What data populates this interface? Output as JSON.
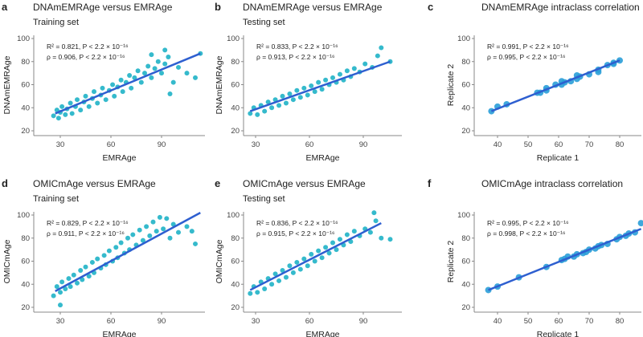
{
  "colors": {
    "points": "#1fb2c6",
    "points_icc": "#2a9ed8",
    "line": "#2e5fd0",
    "axis": "#888888"
  },
  "chart_data": [
    {
      "letter": "a",
      "type": "scatter",
      "title": "DNAmEMRAge versus EMRAge",
      "subtitle": "Training set",
      "xlabel": "EMRAge",
      "ylabel": "DNAmEMRAge",
      "xticks": [
        30,
        60,
        90
      ],
      "yticks": [
        20,
        40,
        60,
        80,
        100
      ],
      "xlim": [
        16,
        116
      ],
      "ylim": [
        20,
        100
      ],
      "stats": [
        "R² = 0.821, P < 2.2 × 10⁻¹⁶",
        "ρ = 0.906, P < 2.2 × 10⁻¹⁶"
      ],
      "fit": [
        [
          27,
          35
        ],
        [
          113,
          87
        ]
      ],
      "points": [
        [
          26,
          33
        ],
        [
          28,
          38
        ],
        [
          29,
          31
        ],
        [
          30,
          36
        ],
        [
          31,
          41
        ],
        [
          33,
          34
        ],
        [
          34,
          39
        ],
        [
          36,
          44
        ],
        [
          37,
          35
        ],
        [
          39,
          41
        ],
        [
          40,
          47
        ],
        [
          42,
          38
        ],
        [
          44,
          45
        ],
        [
          45,
          50
        ],
        [
          47,
          41
        ],
        [
          49,
          48
        ],
        [
          50,
          54
        ],
        [
          52,
          44
        ],
        [
          54,
          51
        ],
        [
          55,
          57
        ],
        [
          57,
          47
        ],
        [
          59,
          55
        ],
        [
          61,
          60
        ],
        [
          62,
          50
        ],
        [
          64,
          58
        ],
        [
          66,
          64
        ],
        [
          67,
          54
        ],
        [
          69,
          62
        ],
        [
          71,
          68
        ],
        [
          72,
          57
        ],
        [
          74,
          66
        ],
        [
          76,
          72
        ],
        [
          78,
          62
        ],
        [
          80,
          70
        ],
        [
          82,
          76
        ],
        [
          84,
          66
        ],
        [
          86,
          74
        ],
        [
          88,
          80
        ],
        [
          90,
          70
        ],
        [
          92,
          78
        ],
        [
          94,
          84
        ],
        [
          95,
          52
        ],
        [
          97,
          62
        ],
        [
          100,
          75
        ],
        [
          105,
          70
        ],
        [
          110,
          66
        ],
        [
          113,
          87
        ],
        [
          92,
          90
        ],
        [
          84,
          86
        ]
      ]
    },
    {
      "letter": "b",
      "type": "scatter",
      "title": "DNAmEMRAge versus EMRAge",
      "subtitle": "Testing set",
      "xlabel": "EMRAge",
      "ylabel": "DNAmEMRAge",
      "xticks": [
        30,
        60,
        90
      ],
      "yticks": [
        20,
        40,
        60,
        80,
        100
      ],
      "xlim": [
        23,
        110
      ],
      "ylim": [
        20,
        100
      ],
      "stats": [
        "R² = 0.833, P < 2.2 × 10⁻¹⁶",
        "ρ = 0.913, P < 2.2 × 10⁻¹⁶"
      ],
      "fit": [
        [
          27,
          37
        ],
        [
          105,
          80
        ]
      ],
      "points": [
        [
          27,
          35
        ],
        [
          29,
          40
        ],
        [
          31,
          34
        ],
        [
          33,
          42
        ],
        [
          35,
          37
        ],
        [
          37,
          45
        ],
        [
          39,
          40
        ],
        [
          41,
          47
        ],
        [
          43,
          42
        ],
        [
          45,
          50
        ],
        [
          47,
          44
        ],
        [
          49,
          52
        ],
        [
          51,
          47
        ],
        [
          53,
          55
        ],
        [
          55,
          49
        ],
        [
          57,
          57
        ],
        [
          59,
          51
        ],
        [
          61,
          59
        ],
        [
          63,
          54
        ],
        [
          65,
          62
        ],
        [
          67,
          56
        ],
        [
          69,
          64
        ],
        [
          71,
          60
        ],
        [
          73,
          66
        ],
        [
          75,
          62
        ],
        [
          77,
          69
        ],
        [
          79,
          64
        ],
        [
          81,
          72
        ],
        [
          83,
          67
        ],
        [
          85,
          74
        ],
        [
          88,
          71
        ],
        [
          91,
          78
        ],
        [
          95,
          75
        ],
        [
          98,
          85
        ],
        [
          100,
          92
        ],
        [
          105,
          80
        ]
      ]
    },
    {
      "letter": "c",
      "type": "scatter",
      "title": "DNAmEMRAge intraclass correlation",
      "subtitle": "",
      "xlabel": "Replicate 1",
      "ylabel": "Replicate 2",
      "xticks": [
        40,
        50,
        60,
        70,
        80
      ],
      "yticks": [
        20,
        40,
        60,
        80,
        100
      ],
      "xlim": [
        32,
        87
      ],
      "ylim": [
        20,
        100
      ],
      "stats": [
        "R² = 0.991, P < 2.2 × 10⁻¹⁶",
        "ρ = 0.995, P < 2.2 × 10⁻¹⁶"
      ],
      "fit": [
        [
          38,
          37
        ],
        [
          80,
          81
        ]
      ],
      "points": [
        [
          38,
          37
        ],
        [
          40,
          41
        ],
        [
          43,
          43
        ],
        [
          53,
          53
        ],
        [
          54,
          53
        ],
        [
          56,
          55
        ],
        [
          56,
          57
        ],
        [
          59,
          60
        ],
        [
          61,
          60
        ],
        [
          61,
          63
        ],
        [
          62,
          62
        ],
        [
          64,
          63
        ],
        [
          66,
          65
        ],
        [
          66,
          68
        ],
        [
          67,
          67
        ],
        [
          70,
          69
        ],
        [
          73,
          71
        ],
        [
          73,
          73
        ],
        [
          76,
          77
        ],
        [
          78,
          78
        ],
        [
          78,
          79
        ],
        [
          80,
          81
        ]
      ]
    },
    {
      "letter": "d",
      "type": "scatter",
      "title": "OMICmAge versus EMRAge",
      "subtitle": "Training set",
      "xlabel": "EMRAge",
      "ylabel": "OMICmAge",
      "xticks": [
        30,
        60,
        90
      ],
      "yticks": [
        20,
        40,
        60,
        80,
        100
      ],
      "xlim": [
        16,
        116
      ],
      "ylim": [
        20,
        100
      ],
      "stats": [
        "R² = 0.829, P < 2.2 × 10⁻¹⁶",
        "ρ = 0.911, P < 2.2 × 10⁻¹⁶"
      ],
      "fit": [
        [
          27,
          34
        ],
        [
          113,
          102
        ]
      ],
      "points": [
        [
          26,
          30
        ],
        [
          28,
          38
        ],
        [
          30,
          33
        ],
        [
          31,
          42
        ],
        [
          33,
          36
        ],
        [
          35,
          45
        ],
        [
          36,
          38
        ],
        [
          38,
          48
        ],
        [
          40,
          41
        ],
        [
          42,
          52
        ],
        [
          43,
          44
        ],
        [
          45,
          55
        ],
        [
          47,
          47
        ],
        [
          49,
          59
        ],
        [
          50,
          50
        ],
        [
          52,
          62
        ],
        [
          54,
          54
        ],
        [
          56,
          65
        ],
        [
          57,
          57
        ],
        [
          59,
          69
        ],
        [
          61,
          60
        ],
        [
          63,
          72
        ],
        [
          64,
          63
        ],
        [
          66,
          76
        ],
        [
          68,
          67
        ],
        [
          70,
          80
        ],
        [
          71,
          70
        ],
        [
          73,
          83
        ],
        [
          75,
          74
        ],
        [
          77,
          87
        ],
        [
          79,
          78
        ],
        [
          81,
          90
        ],
        [
          83,
          82
        ],
        [
          85,
          94
        ],
        [
          87,
          86
        ],
        [
          89,
          98
        ],
        [
          91,
          88
        ],
        [
          93,
          97
        ],
        [
          95,
          80
        ],
        [
          97,
          92
        ],
        [
          100,
          85
        ],
        [
          105,
          90
        ],
        [
          110,
          75
        ],
        [
          108,
          86
        ],
        [
          30,
          22
        ]
      ]
    },
    {
      "letter": "e",
      "type": "scatter",
      "title": "OMICmAge versus EMRAge",
      "subtitle": "Testing set",
      "xlabel": "EMRAge",
      "ylabel": "OMICmAge",
      "xticks": [
        30,
        60,
        90
      ],
      "yticks": [
        20,
        40,
        60,
        80,
        100
      ],
      "xlim": [
        23,
        110
      ],
      "ylim": [
        20,
        100
      ],
      "stats": [
        "R² = 0.836, P < 2.2 × 10⁻¹⁶",
        "ρ = 0.915, P < 2.2 × 10⁻¹⁶"
      ],
      "fit": [
        [
          27,
          35
        ],
        [
          100,
          93
        ]
      ],
      "points": [
        [
          27,
          32
        ],
        [
          29,
          38
        ],
        [
          31,
          33
        ],
        [
          33,
          42
        ],
        [
          35,
          36
        ],
        [
          37,
          45
        ],
        [
          39,
          40
        ],
        [
          41,
          49
        ],
        [
          43,
          43
        ],
        [
          45,
          52
        ],
        [
          47,
          46
        ],
        [
          49,
          56
        ],
        [
          51,
          50
        ],
        [
          53,
          59
        ],
        [
          55,
          53
        ],
        [
          57,
          62
        ],
        [
          59,
          56
        ],
        [
          61,
          66
        ],
        [
          63,
          60
        ],
        [
          65,
          69
        ],
        [
          67,
          63
        ],
        [
          69,
          72
        ],
        [
          71,
          67
        ],
        [
          73,
          76
        ],
        [
          75,
          70
        ],
        [
          77,
          79
        ],
        [
          79,
          74
        ],
        [
          81,
          83
        ],
        [
          83,
          77
        ],
        [
          85,
          86
        ],
        [
          88,
          82
        ],
        [
          91,
          88
        ],
        [
          94,
          85
        ],
        [
          97,
          95
        ],
        [
          100,
          80
        ],
        [
          96,
          102
        ],
        [
          105,
          79
        ]
      ]
    },
    {
      "letter": "f",
      "type": "scatter",
      "title": "OMICmAge intraclass correlation",
      "subtitle": "",
      "xlabel": "Replicate 1",
      "ylabel": "Replicate 2",
      "xticks": [
        40,
        50,
        60,
        70,
        80
      ],
      "yticks": [
        20,
        40,
        60,
        80,
        100
      ],
      "xlim": [
        32,
        87
      ],
      "ylim": [
        20,
        100
      ],
      "stats": [
        "R² = 0.995, P < 2.2 × 10⁻¹⁶",
        "ρ = 0.998, P < 2.2 × 10⁻¹⁶"
      ],
      "fit": [
        [
          37,
          35
        ],
        [
          87,
          88
        ]
      ],
      "points": [
        [
          37,
          35
        ],
        [
          40,
          38
        ],
        [
          47,
          46
        ],
        [
          56,
          55
        ],
        [
          61,
          61
        ],
        [
          62,
          62
        ],
        [
          63,
          64
        ],
        [
          65,
          64
        ],
        [
          66,
          66
        ],
        [
          68,
          67
        ],
        [
          69,
          68
        ],
        [
          70,
          70
        ],
        [
          72,
          71
        ],
        [
          73,
          73
        ],
        [
          74,
          74
        ],
        [
          76,
          75
        ],
        [
          79,
          79
        ],
        [
          80,
          81
        ],
        [
          82,
          82
        ],
        [
          83,
          84
        ],
        [
          85,
          85
        ],
        [
          87,
          93
        ]
      ]
    }
  ]
}
